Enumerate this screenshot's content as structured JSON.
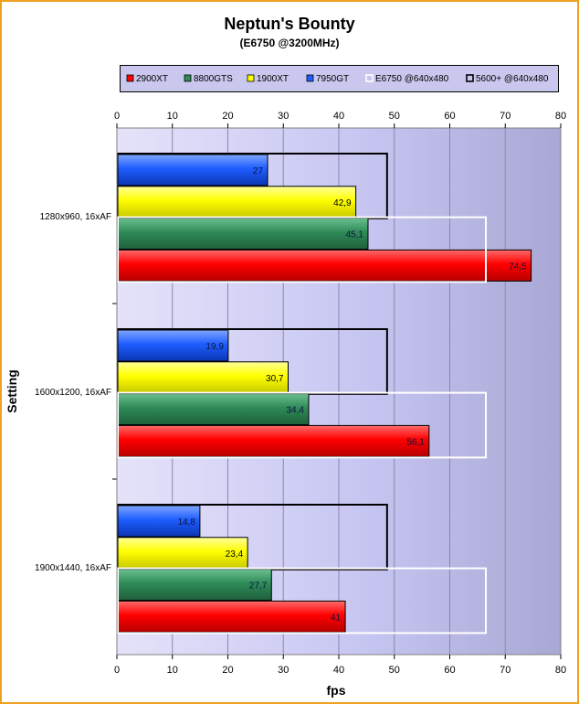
{
  "chart_data": {
    "type": "bar",
    "orientation": "horizontal",
    "title": "Neptun's Bounty",
    "subtitle": "(E6750 @3200MHz)",
    "xlabel": "fps",
    "ylabel": "Setting",
    "xlim": [
      0,
      80
    ],
    "xticks": [
      0,
      10,
      20,
      30,
      40,
      50,
      60,
      70,
      80
    ],
    "grid": true,
    "legend_position": "top",
    "categories": [
      "1280x960, 16xAF",
      "1600x1200, 16xAF",
      "1900x1440, 16xAF"
    ],
    "series": [
      {
        "name": "2900XT",
        "color": "#ff0000",
        "values": [
          74.5,
          56.1,
          41
        ]
      },
      {
        "name": "8800GTS",
        "color": "#2e8b57",
        "values": [
          45.1,
          34.4,
          27.7
        ]
      },
      {
        "name": "1900XT",
        "color": "#ffff00",
        "values": [
          42.9,
          30.7,
          23.4
        ]
      },
      {
        "name": "7950GT",
        "color": "#1e5eff",
        "values": [
          27,
          19.9,
          14.8
        ]
      }
    ],
    "reference_series": [
      {
        "name": "E6750 @640x480",
        "color": "#ffffff",
        "value": 66.5
      },
      {
        "name": "5600+ @640x480",
        "color": "#000000",
        "value": 48.7
      }
    ],
    "value_labels": {
      "2900XT": [
        "74,5",
        "56,1",
        "41"
      ],
      "8800GTS": [
        "45,1",
        "34,4",
        "27,7"
      ],
      "1900XT": [
        "42,9",
        "30,7",
        "23,4"
      ],
      "7950GT": [
        "27",
        "19,9",
        "14,8"
      ]
    }
  }
}
